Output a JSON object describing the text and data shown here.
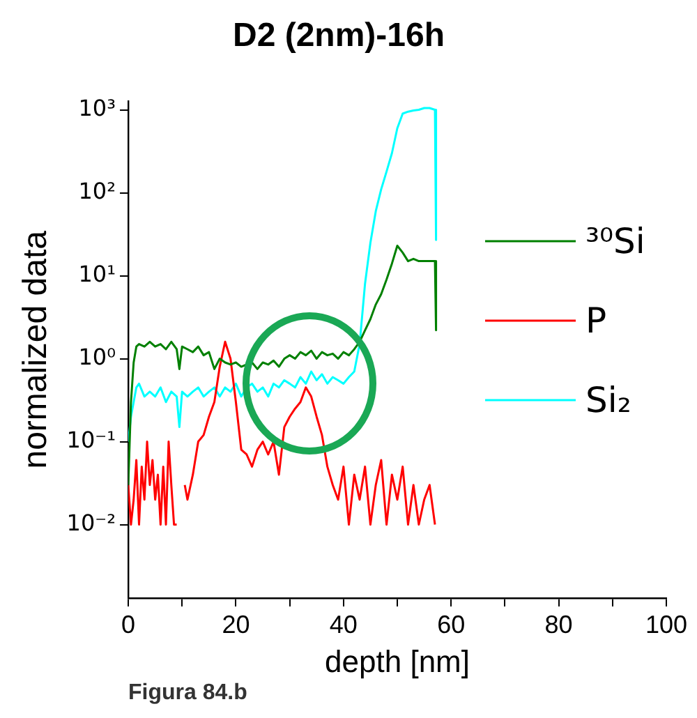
{
  "chart_data": {
    "type": "line",
    "title": "D2 (2nm)-16h",
    "xlabel": "depth [nm]",
    "ylabel": "normalized data",
    "annotations": [
      "Figura 84.b"
    ],
    "log": "y",
    "grid": false,
    "legend": "right",
    "marker": "none",
    "line_style": "solid",
    "xlim": [
      0,
      100
    ],
    "xticks": [
      0,
      {
        "value": 10,
        "label": null
      },
      20,
      {
        "value": 30,
        "label": null
      },
      40,
      {
        "value": 50,
        "label": null
      },
      60,
      {
        "value": 70,
        "label": null
      },
      80,
      {
        "value": 90,
        "label": null
      },
      100
    ],
    "ylim": [
      0.0013,
      1260
    ],
    "yticks": [
      {
        "value": 0.01,
        "label": "10⁻²"
      },
      {
        "value": 0.1,
        "label": "10⁻¹"
      },
      {
        "value": 1,
        "label": "10⁰"
      },
      {
        "value": 10,
        "label": "10¹"
      },
      {
        "value": 100,
        "label": "10²"
      },
      {
        "value": 1000,
        "label": "10³"
      }
    ],
    "series": [
      {
        "name": "³⁰Si",
        "color": "#008000",
        "x": [
          0,
          0.5,
          1,
          1.5,
          2,
          3,
          4,
          5,
          6,
          7,
          8,
          9,
          9.5,
          10,
          11,
          12,
          13,
          14,
          15,
          16,
          17,
          18,
          19,
          20,
          21,
          22,
          23,
          24,
          25,
          26,
          27,
          28,
          29,
          30,
          31,
          32,
          33,
          34,
          35,
          36,
          37,
          38,
          39,
          40,
          41,
          42,
          43,
          44,
          45,
          46,
          47,
          48,
          49,
          50,
          51,
          52,
          53,
          54,
          55,
          56,
          57,
          57.2
        ],
        "values": [
          0.03,
          0.3,
          0.9,
          1.4,
          1.5,
          1.4,
          1.6,
          1.4,
          1.5,
          1.3,
          1.6,
          1.3,
          0.75,
          1.4,
          1.3,
          1.2,
          1.4,
          1.1,
          1.2,
          0.75,
          1.0,
          0.9,
          0.85,
          0.9,
          0.8,
          0.85,
          0.9,
          0.75,
          0.9,
          0.85,
          0.95,
          0.8,
          1.0,
          1.1,
          1.0,
          1.2,
          1.1,
          1.25,
          1.0,
          1.2,
          1.1,
          1.15,
          1.0,
          1.2,
          1.1,
          1.3,
          1.6,
          2.2,
          3.0,
          4.5,
          6,
          9,
          14,
          23,
          19,
          15,
          16,
          15,
          15,
          15,
          15,
          2.2
        ]
      },
      {
        "name": "P",
        "color": "#ff0000",
        "x": [
          0,
          0.5,
          1,
          1.5,
          2,
          2.5,
          3,
          3.5,
          4,
          4.5,
          5,
          5.5,
          6,
          6.5,
          7,
          7.5,
          8,
          8.5,
          9,
          9.5,
          10.5,
          11,
          12,
          13,
          14,
          15,
          16,
          17,
          18,
          19,
          20,
          21,
          22,
          23,
          24,
          25,
          26,
          27,
          28,
          29,
          30,
          31,
          32,
          33,
          34,
          35,
          36,
          37,
          38,
          39,
          40,
          41,
          42,
          43,
          44,
          45,
          46,
          47,
          48,
          49,
          50,
          51,
          52,
          53,
          54,
          55,
          56,
          57
        ],
        "values": [
          0.03,
          0.01,
          0.02,
          0.06,
          0.01,
          0.05,
          0.02,
          0.1,
          0.03,
          0.06,
          0.02,
          0.04,
          0.01,
          0.05,
          0.01,
          0.1,
          0.03,
          0.01,
          0.01,
          null,
          0.03,
          0.02,
          0.04,
          0.1,
          0.12,
          0.2,
          0.3,
          0.8,
          1.6,
          1.0,
          0.3,
          0.08,
          0.07,
          0.05,
          0.08,
          0.1,
          0.07,
          0.1,
          0.04,
          0.15,
          0.2,
          0.25,
          0.3,
          0.45,
          0.35,
          0.2,
          0.12,
          0.05,
          0.03,
          0.02,
          0.05,
          0.01,
          0.04,
          0.02,
          0.05,
          0.01,
          0.03,
          0.06,
          0.01,
          0.04,
          0.02,
          0.05,
          0.01,
          0.03,
          0.01,
          0.02,
          0.03,
          0.01
        ]
      },
      {
        "name": "Si₂",
        "color": "#00ffff",
        "x": [
          0,
          0.5,
          1,
          1.5,
          2,
          3,
          4,
          5,
          6,
          7,
          8,
          9,
          9.5,
          10,
          11,
          12,
          13,
          14,
          15,
          16,
          17,
          18,
          19,
          20,
          21,
          22,
          23,
          24,
          25,
          26,
          27,
          28,
          29,
          30,
          31,
          32,
          33,
          34,
          35,
          36,
          37,
          38,
          39,
          40,
          41,
          42,
          43,
          44,
          45,
          46,
          47,
          48,
          49,
          50,
          51,
          52,
          53,
          54,
          55,
          56,
          57,
          57.2
        ],
        "values": [
          0.1,
          0.2,
          0.3,
          0.45,
          0.5,
          0.35,
          0.4,
          0.35,
          0.45,
          0.3,
          0.4,
          0.35,
          0.15,
          0.4,
          0.35,
          0.4,
          0.45,
          0.35,
          0.4,
          0.45,
          0.35,
          0.45,
          0.4,
          0.5,
          0.35,
          0.45,
          0.5,
          0.4,
          0.45,
          0.35,
          0.5,
          0.45,
          0.55,
          0.5,
          0.45,
          0.6,
          0.5,
          0.7,
          0.55,
          0.65,
          0.5,
          0.6,
          0.55,
          0.5,
          0.6,
          0.7,
          1.5,
          8,
          25,
          60,
          110,
          180,
          300,
          600,
          900,
          950,
          980,
          1000,
          1050,
          1050,
          1000,
          27
        ]
      }
    ]
  }
}
